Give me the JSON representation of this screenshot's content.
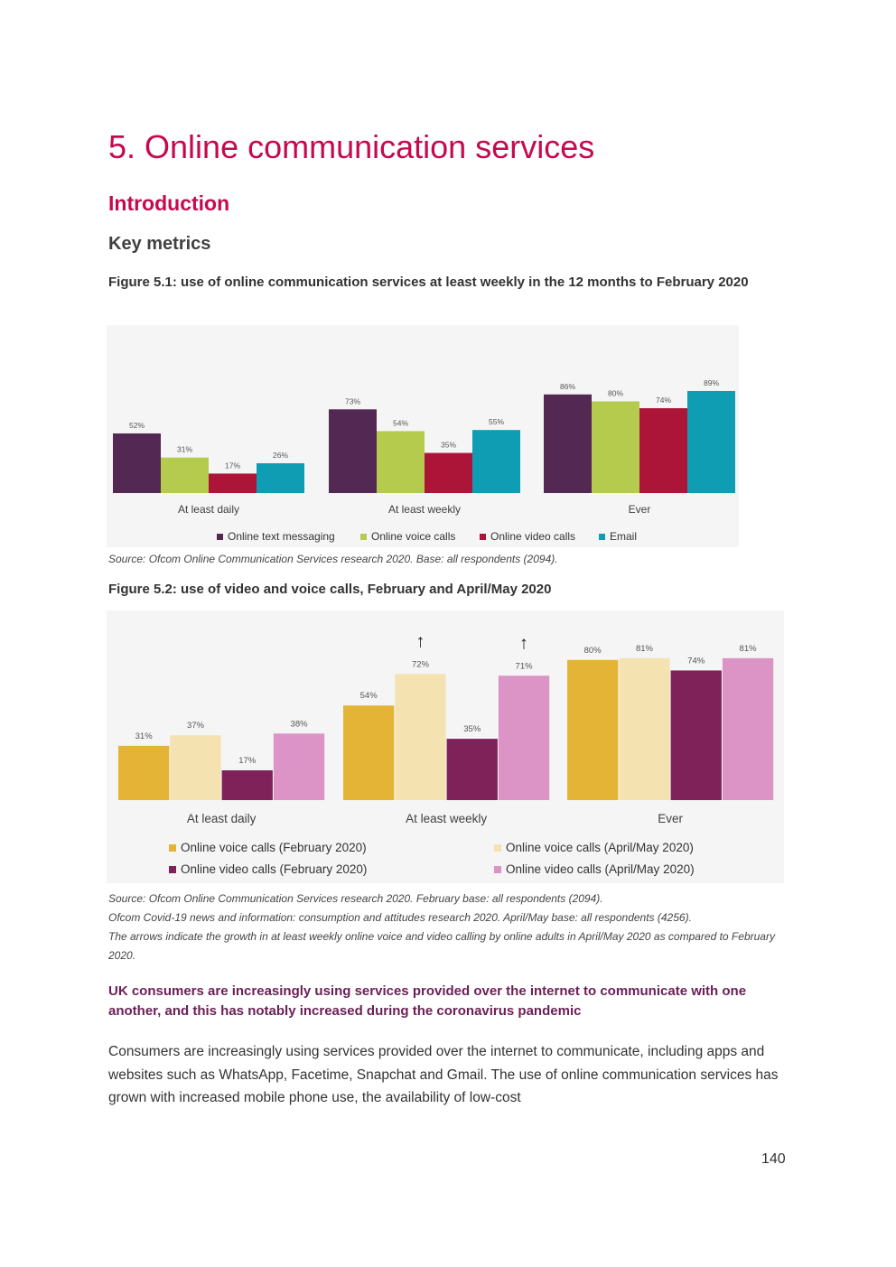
{
  "page": {
    "chapter_title": "5. Online communication services",
    "intro_heading": "Introduction",
    "key_metrics_heading": "Key metrics",
    "page_number": "140"
  },
  "figure_5_1": {
    "caption": "Figure 5.1: use of online communication services at least weekly in the 12 months to February 2020",
    "source": "Source: Ofcom Online Communication Services research 2020. Base: all respondents (2094)."
  },
  "figure_5_2": {
    "caption": "Figure 5.2: use of video and voice calls, February and April/May 2020",
    "source_lines": [
      "Source: Ofcom Online Communication Services research 2020. February base: all respondents (2094).",
      "Ofcom Covid-19 news and information: consumption and attitudes research 2020. April/May base: all respondents (4256).",
      "The arrows indicate the growth in at least weekly online voice and video calling by online adults in April/May 2020 as compared to February 2020."
    ]
  },
  "highlight_text": "UK consumers are increasingly using services provided over the internet to communicate with one another, and this has notably increased during the coronavirus pandemic",
  "body_text": "Consumers are increasingly using services provided over the internet to communicate, including apps and websites such as WhatsApp, Facetime, Snapchat and Gmail. The use of online communication services has grown with increased mobile phone use, the availability of low-cost",
  "chart_data": [
    {
      "id": "figure-5-1",
      "type": "bar",
      "title": "Figure 5.1: use of online communication services at least weekly in the 12 months to February 2020",
      "categories": [
        "At least daily",
        "At least weekly",
        "Ever"
      ],
      "series": [
        {
          "name": "Online text messaging",
          "color": "#532853",
          "values": [
            52,
            73,
            86
          ]
        },
        {
          "name": "Online voice calls",
          "color": "#b5cb4d",
          "values": [
            31,
            54,
            80
          ]
        },
        {
          "name": "Online video calls",
          "color": "#ad1538",
          "values": [
            17,
            35,
            74
          ]
        },
        {
          "name": "Email",
          "color": "#0f9db3",
          "values": [
            26,
            55,
            89
          ]
        }
      ],
      "value_suffix": "%",
      "ylim": [
        0,
        100
      ],
      "legend_position": "bottom"
    },
    {
      "id": "figure-5-2",
      "type": "bar",
      "title": "Figure 5.2: use of video and voice calls, February and April/May 2020",
      "categories": [
        "At least daily",
        "At least weekly",
        "Ever"
      ],
      "series": [
        {
          "name": "Online voice calls (February 2020)",
          "color": "#e4b437",
          "values": [
            31,
            54,
            80
          ]
        },
        {
          "name": "Online voice calls (April/May 2020)",
          "color": "#f4e2b0",
          "values": [
            37,
            72,
            81
          ]
        },
        {
          "name": "Online video calls (February 2020)",
          "color": "#80225a",
          "values": [
            17,
            35,
            74
          ]
        },
        {
          "name": "Online video calls (April/May 2020)",
          "color": "#dc93c5",
          "values": [
            38,
            71,
            81
          ]
        }
      ],
      "value_suffix": "%",
      "ylim": [
        0,
        100
      ],
      "arrows": [
        {
          "category": "At least weekly",
          "series": "Online voice calls (April/May 2020)",
          "symbol": "↑"
        },
        {
          "category": "At least weekly",
          "series": "Online video calls (April/May 2020)",
          "symbol": "↑"
        }
      ],
      "legend_position": "bottom"
    }
  ]
}
